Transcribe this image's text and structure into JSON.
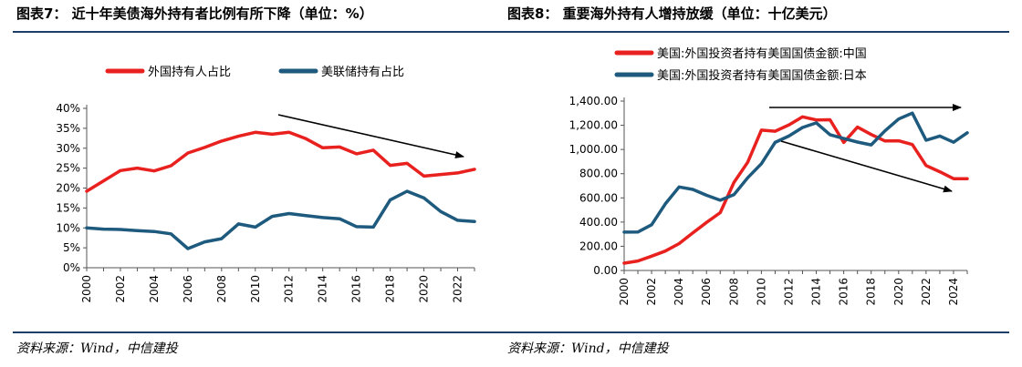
{
  "figures": {
    "left_title": "图表7： 近十年美债海外持有者比例有所下降（单位：%）",
    "right_title": "图表8： 重要海外持有人增持放缓（单位：十亿美元）",
    "left_source": "资料来源：Wind，中信建投",
    "right_source": "资料来源：Wind，中信建投"
  },
  "colors": {
    "red": "#e8211f",
    "blue": "#1d5a7e",
    "rule": "#1f3f6b",
    "axis": "#555555",
    "arrow": "#000000"
  },
  "chart_data": [
    {
      "type": "line",
      "title": "近十年美债海外持有者比例有所下降（单位：%）",
      "x_tick_labels": [
        "2000",
        "2002",
        "2004",
        "2006",
        "2008",
        "2010",
        "2012",
        "2014",
        "2016",
        "2018",
        "2020",
        "2022"
      ],
      "y_tick_labels": [
        "0%",
        "5%",
        "10%",
        "15%",
        "20%",
        "25%",
        "30%",
        "35%",
        "40%"
      ],
      "ylim": [
        0,
        40
      ],
      "legend_position": "top",
      "grid": false,
      "annotation": "downward trend arrow",
      "x": [
        2000,
        2001,
        2002,
        2003,
        2004,
        2005,
        2006,
        2007,
        2008,
        2009,
        2010,
        2011,
        2012,
        2013,
        2014,
        2015,
        2016,
        2017,
        2018,
        2019,
        2020,
        2021,
        2022,
        2023
      ],
      "series": [
        {
          "name": "外国持有人占比",
          "values": [
            19.2,
            21.8,
            24.4,
            25.0,
            24.3,
            25.6,
            28.8,
            30.2,
            31.8,
            33.0,
            34.0,
            33.5,
            34.0,
            32.4,
            30.1,
            30.3,
            28.6,
            29.5,
            25.7,
            26.2,
            23.0,
            23.4,
            23.8,
            24.7
          ]
        },
        {
          "name": "美联储持有占比",
          "values": [
            10.0,
            9.7,
            9.6,
            9.3,
            9.1,
            8.5,
            4.8,
            6.5,
            7.3,
            11.0,
            10.2,
            12.9,
            13.6,
            13.1,
            12.6,
            12.3,
            10.3,
            10.2,
            17.0,
            19.2,
            17.5,
            14.1,
            11.9,
            11.6
          ]
        }
      ]
    },
    {
      "type": "line",
      "title": "重要海外持有人增持放缓（单位：十亿美元）",
      "x_tick_labels": [
        "2000",
        "2002",
        "2004",
        "2006",
        "2008",
        "2010",
        "2012",
        "2014",
        "2016",
        "2018",
        "2020",
        "2022",
        "2024"
      ],
      "y_tick_labels": [
        "0.00",
        "200.00",
        "400.00",
        "600.00",
        "800.00",
        "1,000.00",
        "1,200.00",
        "1,400.00"
      ],
      "ylim": [
        0,
        1400
      ],
      "legend_position": "top",
      "grid": false,
      "annotation": "flat arrow and downward trend arrow",
      "x": [
        2000,
        2001,
        2002,
        2003,
        2004,
        2005,
        2006,
        2007,
        2008,
        2009,
        2010,
        2011,
        2012,
        2013,
        2014,
        2015,
        2016,
        2017,
        2018,
        2019,
        2020,
        2021,
        2022,
        2023,
        2024,
        2025
      ],
      "series": [
        {
          "name": "美国:外国投资者持有美国国债金额:中国",
          "values": [
            60,
            78,
            118,
            160,
            222,
            310,
            397,
            478,
            727,
            894,
            1160,
            1151,
            1203,
            1270,
            1244,
            1246,
            1058,
            1185,
            1124,
            1070,
            1072,
            1041,
            867,
            816,
            759,
            759
          ]
        },
        {
          "name": "美国:外国投资者持有美国国债金额:日本",
          "values": [
            317,
            318,
            378,
            550,
            690,
            670,
            622,
            580,
            626,
            766,
            882,
            1058,
            1111,
            1182,
            1220,
            1122,
            1091,
            1061,
            1038,
            1154,
            1252,
            1301,
            1076,
            1111,
            1060,
            1138
          ]
        }
      ]
    }
  ]
}
